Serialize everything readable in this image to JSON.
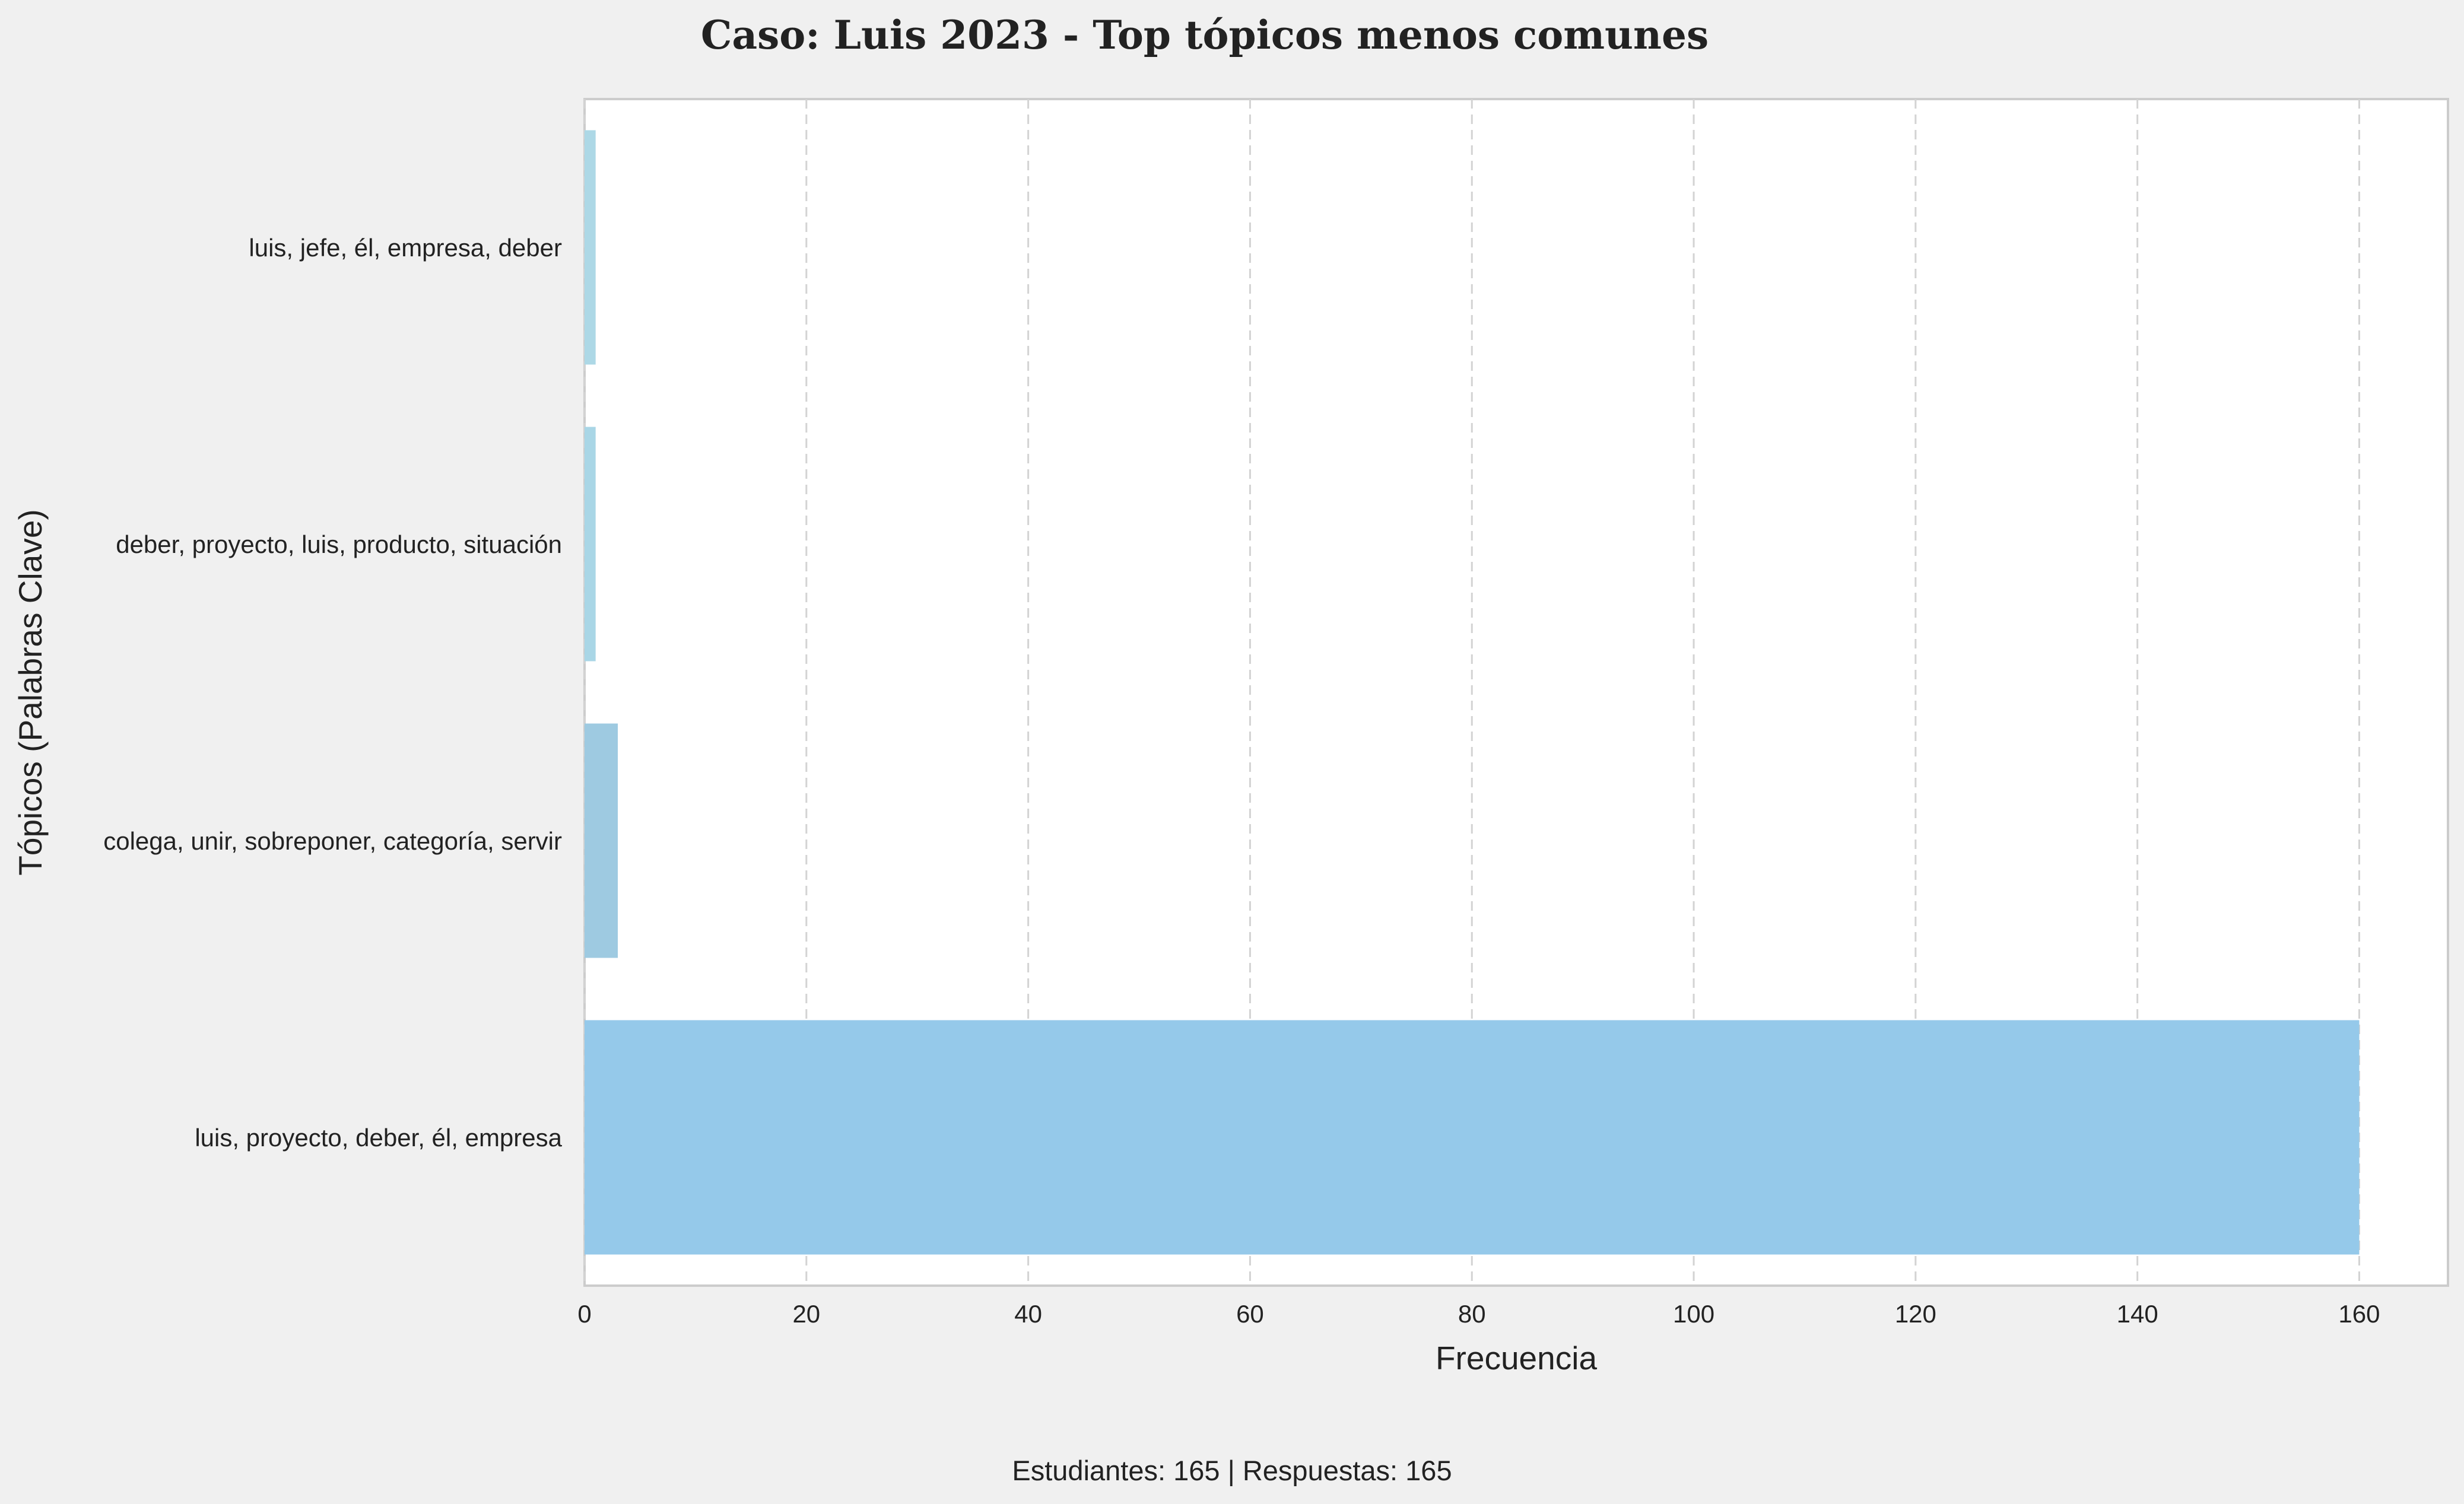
{
  "chart_data": {
    "type": "bar",
    "orientation": "horizontal",
    "title": "Caso: Luis 2023 - Top tópicos menos comunes",
    "xlabel": "Frecuencia",
    "ylabel": "Tópicos (Palabras Clave)",
    "categories": [
      "luis, jefe, él, empresa, deber",
      "deber, proyecto, luis, producto, situación",
      "colega, unir, sobreponer, categoría, servir",
      "luis, proyecto, deber, él, empresa"
    ],
    "values": [
      1,
      1,
      3,
      160
    ],
    "colors": [
      "#add8e6",
      "#a9d6e6",
      "#9ecae1",
      "#95c9ea"
    ],
    "xlim": [
      0,
      168
    ],
    "xticks": [
      0,
      20,
      40,
      60,
      80,
      100,
      120,
      140,
      160
    ],
    "grid": "x-dashed",
    "legend": "none"
  },
  "footer": "Estudiantes: 165 | Respuestas: 165"
}
